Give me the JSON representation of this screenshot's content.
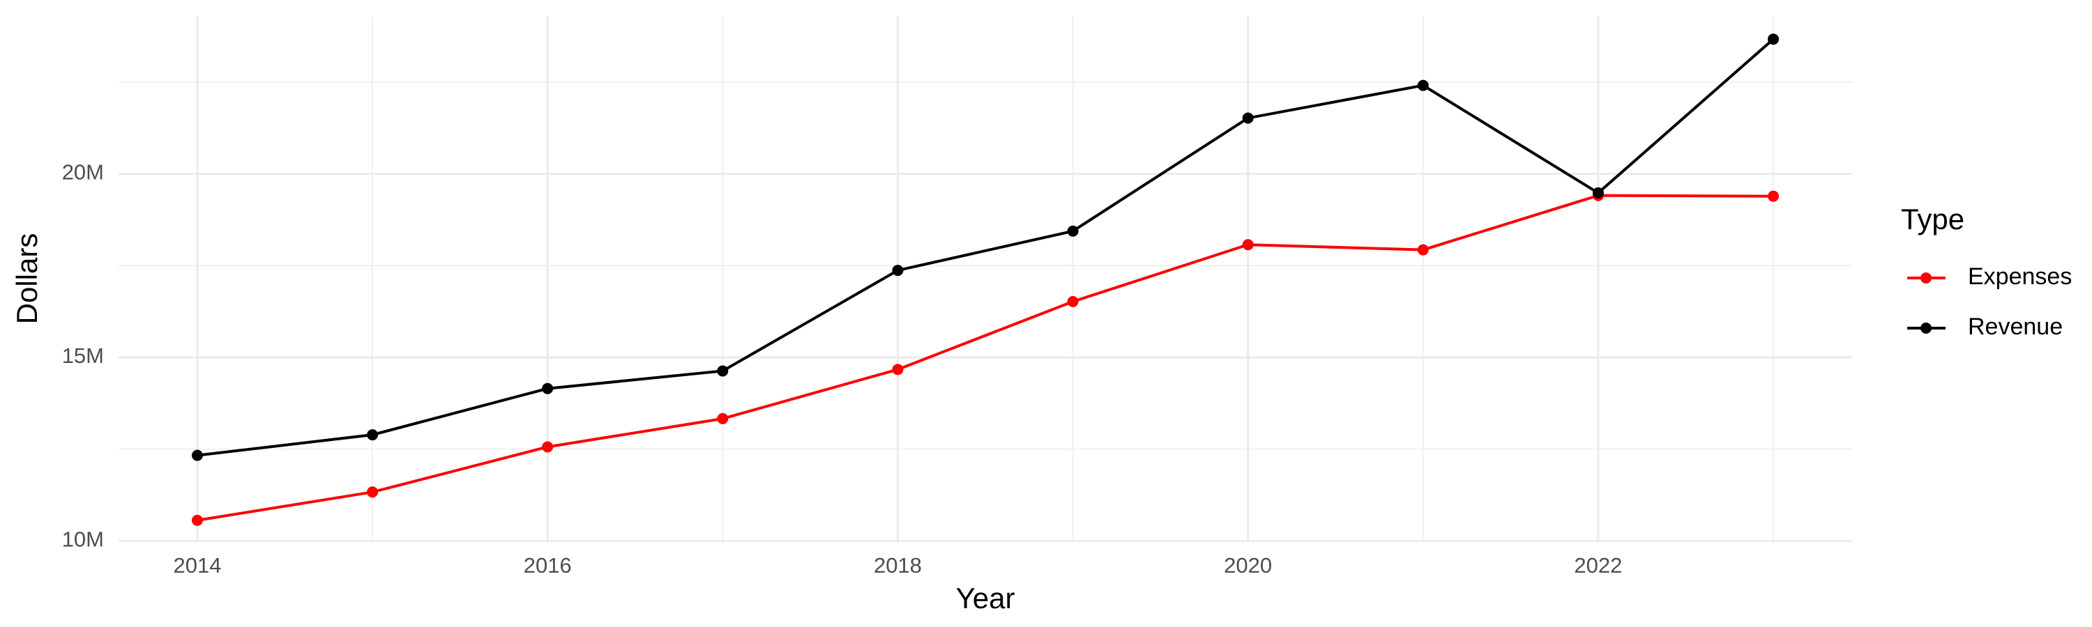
{
  "chart_data": {
    "type": "line",
    "x_label": "Year",
    "y_label": "Dollars",
    "legend_title": "Type",
    "legend_position": "right",
    "grid": true,
    "x": [
      2014,
      2015,
      2016,
      2017,
      2018,
      2019,
      2020,
      2021,
      2022,
      2023
    ],
    "series": [
      {
        "name": "Expenses",
        "color": "#ff0000",
        "values": [
          10560000,
          11330000,
          12560000,
          13330000,
          14670000,
          16520000,
          18070000,
          17930000,
          19410000,
          19390000
        ]
      },
      {
        "name": "Revenue",
        "color": "#000000",
        "values": [
          12330000,
          12890000,
          14150000,
          14630000,
          17370000,
          18440000,
          21520000,
          22410000,
          19480000,
          23670000
        ]
      }
    ],
    "xlim": [
      2013.55,
      2023.45
    ],
    "xticks": [
      2014,
      2016,
      2018,
      2020,
      2022
    ],
    "ylim": [
      9950000,
      24300000
    ],
    "yticks": [
      {
        "value": 10000000,
        "label": "10M"
      },
      {
        "value": 15000000,
        "label": "15M"
      },
      {
        "value": 20000000,
        "label": "20M"
      }
    ]
  }
}
